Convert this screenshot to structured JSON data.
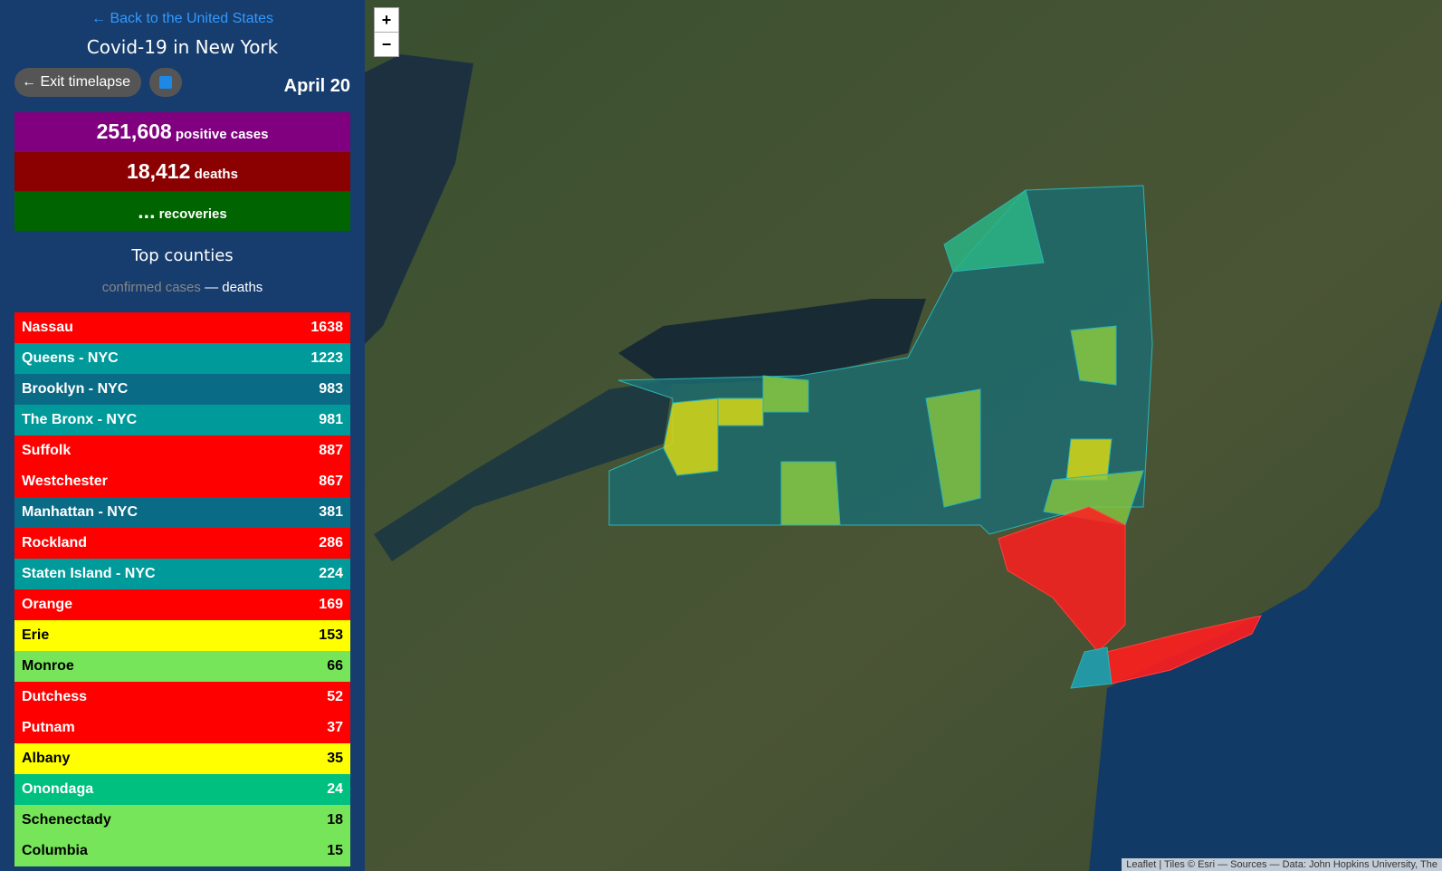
{
  "back_link": "← Back to the United States",
  "title": "Covid-19 in New York",
  "exit_button": "← Exit timelapse",
  "date": "April 20",
  "stats": [
    {
      "value": "251,608",
      "label": "positive cases",
      "color": "#800080"
    },
    {
      "value": "18,412",
      "label": "deaths",
      "color": "#8b0000"
    },
    {
      "value": "...",
      "label": "recoveries",
      "color": "#006400"
    }
  ],
  "top_counties": {
    "title": "Top counties",
    "legend_confirmed": "confirmed cases",
    "legend_deaths": "— deaths",
    "rows": [
      {
        "name": "Nassau",
        "value": 1638,
        "color": "#ff0000",
        "text_color": "#ffffff"
      },
      {
        "name": "Queens - NYC",
        "value": 1223,
        "color": "#009a9a",
        "text_color": "#ffffff"
      },
      {
        "name": "Brooklyn - NYC",
        "value": 983,
        "color": "#0a6b86",
        "text_color": "#ffffff"
      },
      {
        "name": "The Bronx - NYC",
        "value": 981,
        "color": "#009a9a",
        "text_color": "#ffffff"
      },
      {
        "name": "Suffolk",
        "value": 887,
        "color": "#ff0000",
        "text_color": "#ffffff"
      },
      {
        "name": "Westchester",
        "value": 867,
        "color": "#ff0000",
        "text_color": "#ffffff"
      },
      {
        "name": "Manhattan - NYC",
        "value": 381,
        "color": "#0a6b86",
        "text_color": "#ffffff"
      },
      {
        "name": "Rockland",
        "value": 286,
        "color": "#ff0000",
        "text_color": "#ffffff"
      },
      {
        "name": "Staten Island - NYC",
        "value": 224,
        "color": "#009a9a",
        "text_color": "#ffffff"
      },
      {
        "name": "Orange",
        "value": 169,
        "color": "#ff0000",
        "text_color": "#ffffff"
      },
      {
        "name": "Erie",
        "value": 153,
        "color": "#ffff00",
        "text_color": "#000000"
      },
      {
        "name": "Monroe",
        "value": 66,
        "color": "#77e55a",
        "text_color": "#000000"
      },
      {
        "name": "Dutchess",
        "value": 52,
        "color": "#ff0000",
        "text_color": "#ffffff"
      },
      {
        "name": "Putnam",
        "value": 37,
        "color": "#ff0000",
        "text_color": "#ffffff"
      },
      {
        "name": "Albany",
        "value": 35,
        "color": "#ffff00",
        "text_color": "#000000"
      },
      {
        "name": "Onondaga",
        "value": 24,
        "color": "#00c080",
        "text_color": "#ffffff"
      },
      {
        "name": "Schenectady",
        "value": 18,
        "color": "#77e55a",
        "text_color": "#000000"
      },
      {
        "name": "Columbia",
        "value": 15,
        "color": "#77e55a",
        "text_color": "#000000"
      }
    ]
  },
  "map": {
    "zoom_in": "+",
    "zoom_out": "−",
    "attribution": "Leaflet | Tiles © Esri — Sources — Data: John Hopkins University, The"
  }
}
